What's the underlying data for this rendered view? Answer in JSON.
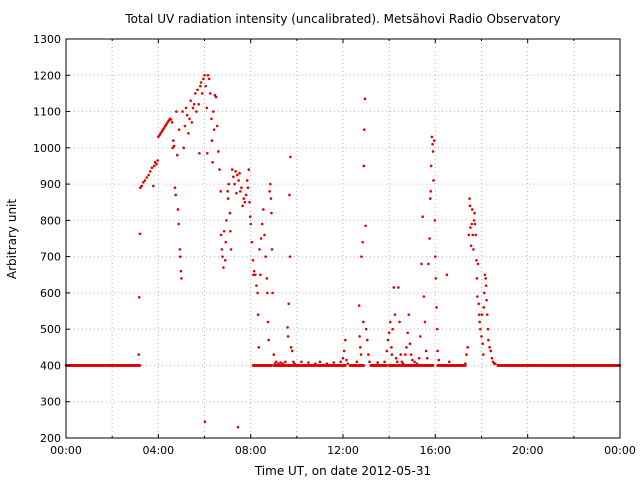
{
  "chart_data": {
    "type": "scatter",
    "title": "Total UV radiation intensity (uncalibrated). Metsähovi Radio Observatory",
    "xlabel": "Time UT, on date 2012-05-31",
    "ylabel": "Arbitrary unit",
    "x_unit": "hours UT",
    "xlim": [
      0,
      24
    ],
    "ylim": [
      200,
      1300
    ],
    "x_ticks": [
      {
        "value": 0,
        "label": "00:00"
      },
      {
        "value": 4,
        "label": "04:00"
      },
      {
        "value": 8,
        "label": "08:00"
      },
      {
        "value": 12,
        "label": "12:00"
      },
      {
        "value": 16,
        "label": "16:00"
      },
      {
        "value": 20,
        "label": "20:00"
      },
      {
        "value": 24,
        "label": "00:00"
      }
    ],
    "y_ticks": [
      200,
      300,
      400,
      500,
      600,
      700,
      800,
      900,
      1000,
      1100,
      1200,
      1300
    ],
    "grid": true,
    "legend": "none",
    "marker_color": "#e00000",
    "series": [
      {
        "baseline": {
          "value": 400,
          "x_ranges": [
            [
              0,
              3.2
            ],
            [
              8.1,
              8.9
            ],
            [
              9.0,
              12.1
            ],
            [
              12.3,
              12.9
            ],
            [
              13.2,
              13.9
            ],
            [
              14.0,
              15.9
            ],
            [
              16.1,
              17.3
            ],
            [
              18.7,
              24
            ]
          ]
        },
        "points": [
          [
            3.15,
            430
          ],
          [
            3.17,
            588
          ],
          [
            3.2,
            763
          ],
          [
            3.22,
            890
          ],
          [
            3.28,
            895
          ],
          [
            3.35,
            905
          ],
          [
            3.42,
            910
          ],
          [
            3.5,
            918
          ],
          [
            3.58,
            925
          ],
          [
            3.65,
            935
          ],
          [
            3.72,
            945
          ],
          [
            3.78,
            895
          ],
          [
            3.82,
            950
          ],
          [
            3.86,
            960
          ],
          [
            3.92,
            955
          ],
          [
            3.97,
            965
          ],
          [
            4.0,
            1030
          ],
          [
            4.05,
            1035
          ],
          [
            4.1,
            1040
          ],
          [
            4.15,
            1045
          ],
          [
            4.2,
            1050
          ],
          [
            4.25,
            1055
          ],
          [
            4.3,
            1060
          ],
          [
            4.35,
            1065
          ],
          [
            4.4,
            1070
          ],
          [
            4.45,
            1075
          ],
          [
            4.5,
            1080
          ],
          [
            4.55,
            1078
          ],
          [
            4.6,
            1070
          ],
          [
            4.62,
            1000
          ],
          [
            4.65,
            1020
          ],
          [
            4.68,
            1005
          ],
          [
            4.72,
            890
          ],
          [
            4.75,
            870
          ],
          [
            4.78,
            1100
          ],
          [
            4.82,
            980
          ],
          [
            4.85,
            830
          ],
          [
            4.88,
            790
          ],
          [
            4.9,
            1050
          ],
          [
            4.93,
            720
          ],
          [
            4.95,
            700
          ],
          [
            4.98,
            660
          ],
          [
            5.0,
            640
          ],
          [
            5.05,
            1100
          ],
          [
            5.1,
            1000
          ],
          [
            5.15,
            1060
          ],
          [
            5.2,
            1110
          ],
          [
            5.25,
            1090
          ],
          [
            5.3,
            1040
          ],
          [
            5.35,
            1080
          ],
          [
            5.4,
            1130
          ],
          [
            5.45,
            1070
          ],
          [
            5.5,
            1110
          ],
          [
            5.55,
            1120
          ],
          [
            5.6,
            1150
          ],
          [
            5.65,
            1100
          ],
          [
            5.7,
            1160
          ],
          [
            5.75,
            1120
          ],
          [
            5.78,
            985
          ],
          [
            5.82,
            1170
          ],
          [
            5.85,
            1180
          ],
          [
            5.9,
            1150
          ],
          [
            5.95,
            1190
          ],
          [
            6.0,
            1200
          ],
          [
            6.02,
            245
          ],
          [
            6.05,
            1170
          ],
          [
            6.1,
            1110
          ],
          [
            6.12,
            985
          ],
          [
            6.15,
            1200
          ],
          [
            6.2,
            1190
          ],
          [
            6.25,
            1150
          ],
          [
            6.3,
            1080
          ],
          [
            6.32,
            1020
          ],
          [
            6.35,
            960
          ],
          [
            6.38,
            1100
          ],
          [
            6.42,
            1050
          ],
          [
            6.45,
            1145
          ],
          [
            6.5,
            1140
          ],
          [
            6.55,
            1060
          ],
          [
            6.6,
            990
          ],
          [
            6.65,
            940
          ],
          [
            6.7,
            880
          ],
          [
            6.72,
            760
          ],
          [
            6.75,
            720
          ],
          [
            6.78,
            700
          ],
          [
            6.82,
            670
          ],
          [
            6.85,
            770
          ],
          [
            6.9,
            690
          ],
          [
            6.92,
            740
          ],
          [
            6.95,
            800
          ],
          [
            7.0,
            880
          ],
          [
            7.02,
            860
          ],
          [
            7.05,
            900
          ],
          [
            7.1,
            820
          ],
          [
            7.12,
            770
          ],
          [
            7.15,
            720
          ],
          [
            7.2,
            940
          ],
          [
            7.25,
            920
          ],
          [
            7.3,
            900
          ],
          [
            7.35,
            935
          ],
          [
            7.38,
            875
          ],
          [
            7.42,
            925
          ],
          [
            7.45,
            230
          ],
          [
            7.48,
            910
          ],
          [
            7.52,
            930
          ],
          [
            7.55,
            880
          ],
          [
            7.6,
            890
          ],
          [
            7.65,
            840
          ],
          [
            7.7,
            860
          ],
          [
            7.75,
            850
          ],
          [
            7.8,
            870
          ],
          [
            7.85,
            910
          ],
          [
            7.88,
            890
          ],
          [
            7.92,
            940
          ],
          [
            7.95,
            850
          ],
          [
            7.98,
            810
          ],
          [
            8.0,
            790
          ],
          [
            8.05,
            740
          ],
          [
            8.1,
            690
          ],
          [
            8.12,
            650
          ],
          [
            8.15,
            660
          ],
          [
            8.2,
            650
          ],
          [
            8.25,
            620
          ],
          [
            8.3,
            600
          ],
          [
            8.32,
            540
          ],
          [
            8.35,
            450
          ],
          [
            8.38,
            720
          ],
          [
            8.42,
            650
          ],
          [
            8.45,
            750
          ],
          [
            8.5,
            790
          ],
          [
            8.55,
            830
          ],
          [
            8.6,
            760
          ],
          [
            8.65,
            700
          ],
          [
            8.7,
            640
          ],
          [
            8.72,
            600
          ],
          [
            8.75,
            520
          ],
          [
            8.78,
            470
          ],
          [
            8.82,
            880
          ],
          [
            8.85,
            900
          ],
          [
            8.88,
            860
          ],
          [
            8.9,
            820
          ],
          [
            8.92,
            720
          ],
          [
            8.95,
            600
          ],
          [
            9.0,
            430
          ],
          [
            9.05,
            405
          ],
          [
            9.1,
            410
          ],
          [
            9.2,
            405
          ],
          [
            9.3,
            408
          ],
          [
            9.4,
            405
          ],
          [
            9.5,
            410
          ],
          [
            9.6,
            505
          ],
          [
            9.62,
            480
          ],
          [
            9.65,
            570
          ],
          [
            9.68,
            870
          ],
          [
            9.7,
            700
          ],
          [
            9.72,
            975
          ],
          [
            9.75,
            450
          ],
          [
            9.8,
            440
          ],
          [
            9.85,
            410
          ],
          [
            9.9,
            405
          ],
          [
            10.2,
            410
          ],
          [
            10.5,
            408
          ],
          [
            10.8,
            405
          ],
          [
            11.0,
            410
          ],
          [
            11.3,
            405
          ],
          [
            11.6,
            408
          ],
          [
            11.9,
            410
          ],
          [
            12.0,
            420
          ],
          [
            12.05,
            440
          ],
          [
            12.1,
            470
          ],
          [
            12.15,
            415
          ],
          [
            12.2,
            405
          ],
          [
            12.6,
            410
          ],
          [
            12.7,
            565
          ],
          [
            12.72,
            480
          ],
          [
            12.75,
            450
          ],
          [
            12.78,
            430
          ],
          [
            12.8,
            700
          ],
          [
            12.85,
            740
          ],
          [
            12.88,
            520
          ],
          [
            12.9,
            950
          ],
          [
            12.92,
            1050
          ],
          [
            12.95,
            1135
          ],
          [
            12.98,
            785
          ],
          [
            13.0,
            500
          ],
          [
            13.05,
            470
          ],
          [
            13.1,
            430
          ],
          [
            13.15,
            410
          ],
          [
            13.5,
            408
          ],
          [
            13.8,
            410
          ],
          [
            13.9,
            440
          ],
          [
            13.95,
            470
          ],
          [
            14.0,
            490
          ],
          [
            14.05,
            520
          ],
          [
            14.1,
            450
          ],
          [
            14.12,
            430
          ],
          [
            14.15,
            500
          ],
          [
            14.2,
            615
          ],
          [
            14.25,
            540
          ],
          [
            14.3,
            420
          ],
          [
            14.35,
            410
          ],
          [
            14.4,
            615
          ],
          [
            14.45,
            520
          ],
          [
            14.5,
            430
          ],
          [
            14.55,
            410
          ],
          [
            14.6,
            405
          ],
          [
            14.7,
            430
          ],
          [
            14.75,
            450
          ],
          [
            14.8,
            490
          ],
          [
            14.85,
            540
          ],
          [
            14.9,
            460
          ],
          [
            14.95,
            430
          ],
          [
            15.0,
            415
          ],
          [
            15.1,
            410
          ],
          [
            15.2,
            405
          ],
          [
            15.3,
            420
          ],
          [
            15.35,
            480
          ],
          [
            15.4,
            680
          ],
          [
            15.45,
            810
          ],
          [
            15.5,
            590
          ],
          [
            15.55,
            520
          ],
          [
            15.6,
            440
          ],
          [
            15.65,
            420
          ],
          [
            15.7,
            680
          ],
          [
            15.75,
            750
          ],
          [
            15.78,
            860
          ],
          [
            15.8,
            880
          ],
          [
            15.82,
            950
          ],
          [
            15.85,
            1030
          ],
          [
            15.88,
            1010
          ],
          [
            15.9,
            990
          ],
          [
            15.92,
            910
          ],
          [
            15.95,
            1020
          ],
          [
            15.98,
            800
          ],
          [
            16.0,
            700
          ],
          [
            16.02,
            640
          ],
          [
            16.05,
            560
          ],
          [
            16.08,
            500
          ],
          [
            16.1,
            440
          ],
          [
            16.15,
            415
          ],
          [
            16.5,
            650
          ],
          [
            16.6,
            410
          ],
          [
            17.3,
            405
          ],
          [
            17.35,
            430
          ],
          [
            17.4,
            450
          ],
          [
            17.45,
            760
          ],
          [
            17.48,
            860
          ],
          [
            17.5,
            840
          ],
          [
            17.52,
            780
          ],
          [
            17.55,
            730
          ],
          [
            17.58,
            790
          ],
          [
            17.6,
            830
          ],
          [
            17.62,
            760
          ],
          [
            17.65,
            720
          ],
          [
            17.68,
            800
          ],
          [
            17.7,
            820
          ],
          [
            17.72,
            790
          ],
          [
            17.75,
            760
          ],
          [
            17.78,
            690
          ],
          [
            17.8,
            640
          ],
          [
            17.82,
            590
          ],
          [
            17.85,
            680
          ],
          [
            17.88,
            570
          ],
          [
            17.9,
            540
          ],
          [
            17.92,
            520
          ],
          [
            17.95,
            500
          ],
          [
            18.0,
            480
          ],
          [
            18.02,
            540
          ],
          [
            18.05,
            460
          ],
          [
            18.08,
            430
          ],
          [
            18.1,
            560
          ],
          [
            18.12,
            600
          ],
          [
            18.15,
            650
          ],
          [
            18.18,
            640
          ],
          [
            18.2,
            620
          ],
          [
            18.22,
            580
          ],
          [
            18.25,
            540
          ],
          [
            18.28,
            500
          ],
          [
            18.3,
            470
          ],
          [
            18.35,
            450
          ],
          [
            18.4,
            440
          ],
          [
            18.45,
            420
          ],
          [
            18.5,
            410
          ],
          [
            18.55,
            405
          ],
          [
            18.6,
            405
          ]
        ]
      }
    ]
  }
}
